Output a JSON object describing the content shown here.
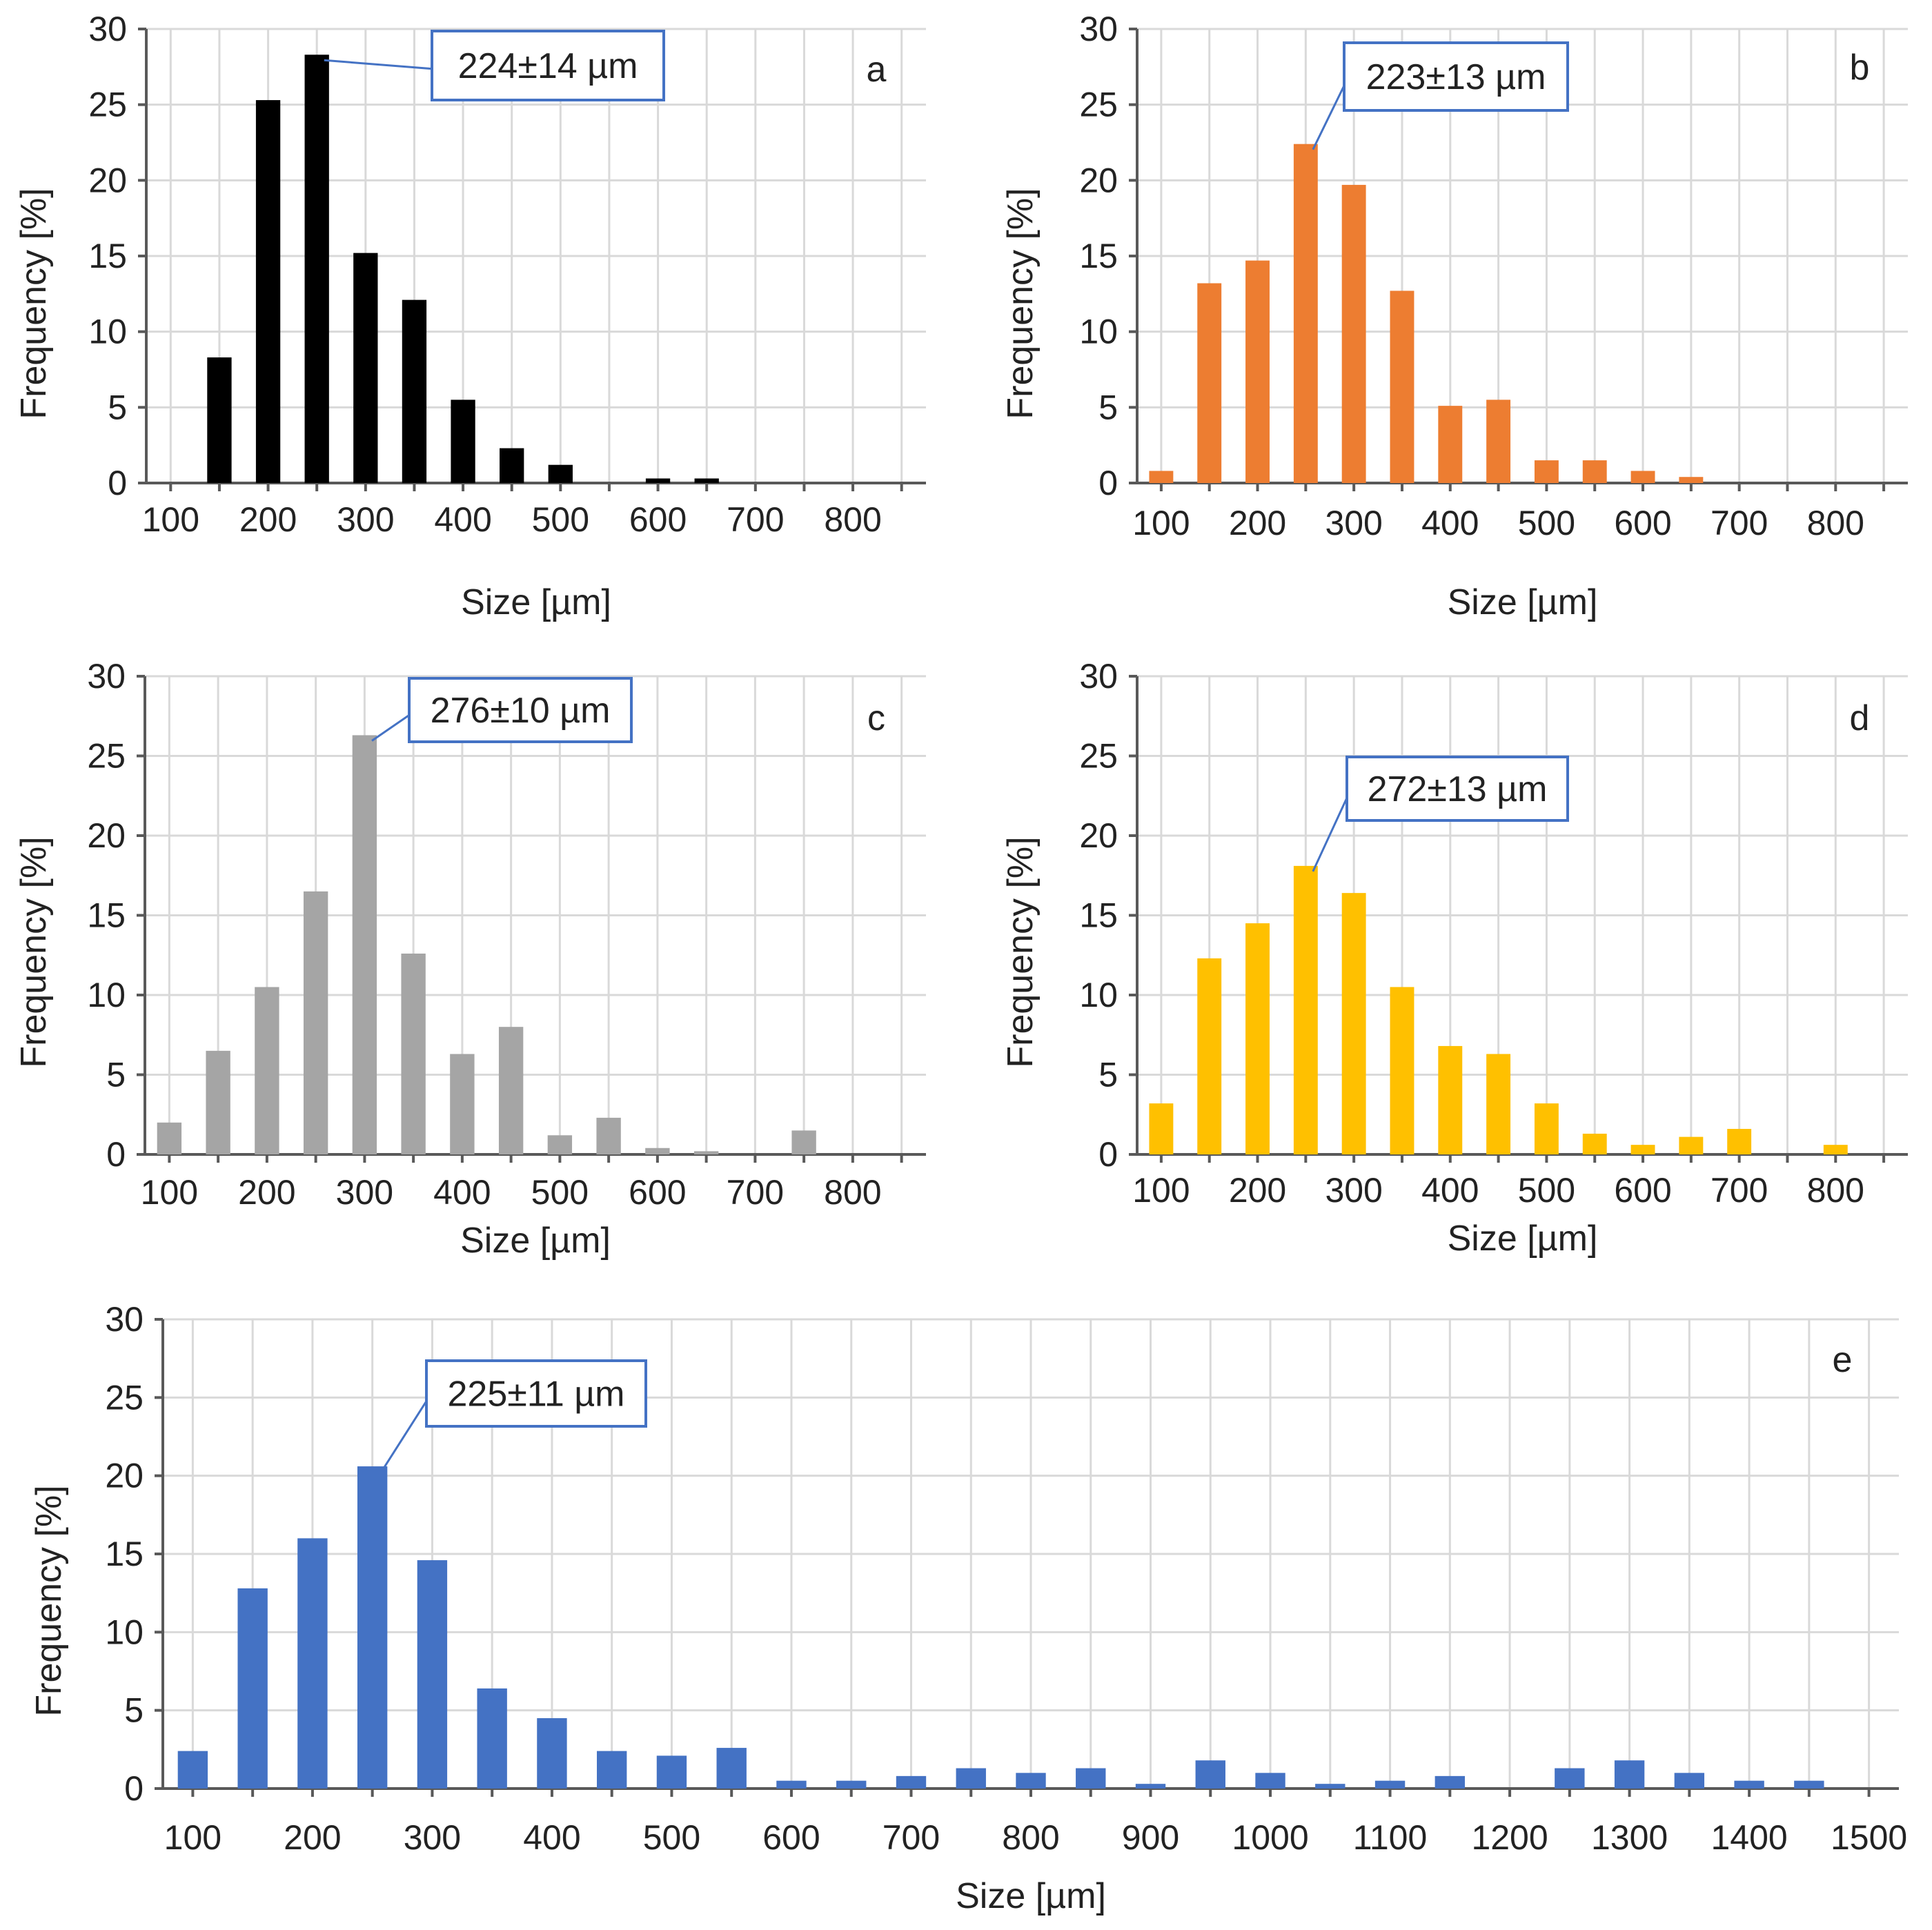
{
  "chart_data": [
    {
      "panel": "a",
      "type": "bar",
      "color": "#000000",
      "ylabel": "Frequency [%]",
      "xlabel": "Size [µm]",
      "ylim": [
        0,
        30
      ],
      "yticks": [
        0,
        5,
        10,
        15,
        20,
        25,
        30
      ],
      "xlim": [
        75,
        875
      ],
      "xticks": [
        100,
        200,
        300,
        400,
        500,
        600,
        700,
        800
      ],
      "x": [
        150,
        200,
        250,
        300,
        350,
        400,
        450,
        500,
        550,
        600,
        650
      ],
      "values": [
        8.3,
        25.3,
        28.3,
        15.2,
        12.1,
        5.5,
        2.3,
        1.2,
        0,
        0.3,
        0.3
      ],
      "annotation": {
        "text": "224±14 µm",
        "bar_index": 2
      }
    },
    {
      "panel": "b",
      "type": "bar",
      "color": "#ed7d31",
      "ylabel": "Frequency [%]",
      "xlabel": "Size [µm]",
      "ylim": [
        0,
        30
      ],
      "yticks": [
        0,
        5,
        10,
        15,
        20,
        25,
        30
      ],
      "xlim": [
        75,
        875
      ],
      "xticks": [
        100,
        200,
        300,
        400,
        500,
        600,
        700,
        800
      ],
      "x": [
        100,
        150,
        200,
        250,
        300,
        350,
        400,
        450,
        500,
        550,
        600,
        650
      ],
      "values": [
        0.8,
        13.2,
        14.7,
        22.4,
        19.7,
        12.7,
        5.1,
        5.5,
        1.5,
        1.5,
        0.8,
        0.4
      ],
      "annotation": {
        "text": "223±13 µm",
        "bar_index": 3
      }
    },
    {
      "panel": "c",
      "type": "bar",
      "color": "#a5a5a5",
      "ylabel": "Frequency [%]",
      "xlabel": "Size [µm]",
      "ylim": [
        0,
        30
      ],
      "yticks": [
        0,
        5,
        10,
        15,
        20,
        25,
        30
      ],
      "xlim": [
        75,
        875
      ],
      "xticks": [
        100,
        200,
        300,
        400,
        500,
        600,
        700,
        800
      ],
      "x": [
        100,
        150,
        200,
        250,
        300,
        350,
        400,
        450,
        500,
        550,
        600,
        650,
        700,
        750
      ],
      "values": [
        2.0,
        6.5,
        10.5,
        16.5,
        26.3,
        12.6,
        6.3,
        8.0,
        1.2,
        2.3,
        0.4,
        0.2,
        0,
        1.5
      ],
      "annotation": {
        "text": "276±10 µm",
        "bar_index": 4
      }
    },
    {
      "panel": "d",
      "type": "bar",
      "color": "#ffc000",
      "ylabel": "Frequency [%]",
      "xlabel": "Size [µm]",
      "ylim": [
        0,
        30
      ],
      "yticks": [
        0,
        5,
        10,
        15,
        20,
        25,
        30
      ],
      "xlim": [
        75,
        875
      ],
      "xticks": [
        100,
        200,
        300,
        400,
        500,
        600,
        700,
        800
      ],
      "x": [
        100,
        150,
        200,
        250,
        300,
        350,
        400,
        450,
        500,
        550,
        600,
        650,
        700,
        750,
        800
      ],
      "values": [
        3.2,
        12.3,
        14.5,
        18.1,
        16.4,
        10.5,
        6.8,
        6.3,
        3.2,
        1.3,
        0.6,
        1.1,
        1.6,
        0,
        0.6
      ],
      "annotation": {
        "text": "272±13 µm",
        "bar_index": 3
      }
    },
    {
      "panel": "e",
      "type": "bar",
      "color": "#4472c4",
      "ylabel": "Frequency [%]",
      "xlabel": "Size [µm]",
      "ylim": [
        0,
        30
      ],
      "yticks": [
        0,
        5,
        10,
        15,
        20,
        25,
        30
      ],
      "xlim": [
        75,
        1525
      ],
      "xticks": [
        100,
        200,
        300,
        400,
        500,
        600,
        700,
        800,
        900,
        1000,
        1100,
        1200,
        1300,
        1400,
        1500
      ],
      "x": [
        100,
        150,
        200,
        250,
        300,
        350,
        400,
        450,
        500,
        550,
        600,
        650,
        700,
        750,
        800,
        850,
        900,
        950,
        1000,
        1050,
        1100,
        1150,
        1200,
        1250,
        1300,
        1350,
        1400,
        1450
      ],
      "values": [
        2.4,
        12.8,
        16.0,
        20.6,
        14.6,
        6.4,
        4.5,
        2.4,
        2.1,
        2.6,
        0.5,
        0.5,
        0.8,
        1.3,
        1.0,
        1.3,
        0.3,
        1.8,
        1.0,
        0.3,
        0.5,
        0.8,
        0,
        1.3,
        1.8,
        1.0,
        0.5,
        0.5
      ],
      "annotation": {
        "text": "225±11 µm",
        "bar_index": 3
      }
    }
  ],
  "colors": {
    "grid": "#d9d9d9",
    "axis": "#595959",
    "callout_border": "#4472c4"
  }
}
